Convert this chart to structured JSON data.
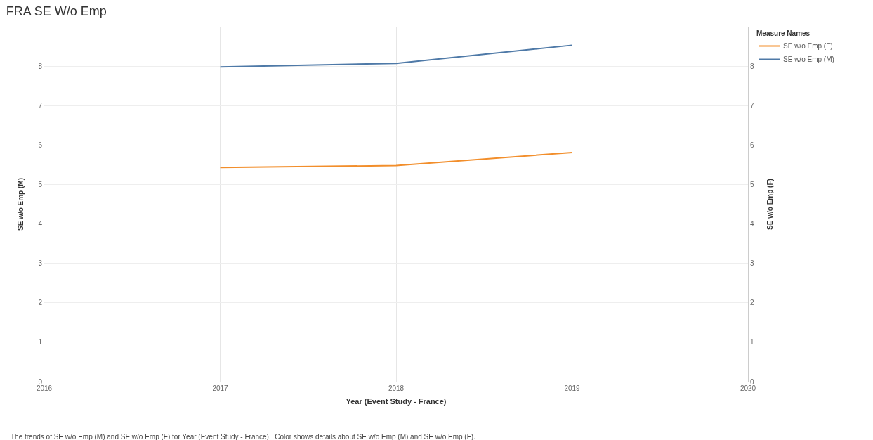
{
  "chart_data": {
    "type": "line",
    "title": "FRA SE W/o Emp",
    "xlabel": "Year (Event Study - France)",
    "ylabel": "SE w/o Emp (M)",
    "y2label": "SE w/o Emp (F)",
    "legend_title": "Measure Names",
    "x": [
      2017,
      2018,
      2019
    ],
    "series": [
      {
        "name": "SE w/o Emp (F)",
        "color": "#f28e2b",
        "values": [
          5.43,
          5.48,
          5.81
        ],
        "axis": "y2"
      },
      {
        "name": "SE w/o Emp (M)",
        "color": "#4e79a7",
        "values": [
          7.98,
          8.07,
          8.53
        ]
      }
    ],
    "xlim": [
      2016,
      2020
    ],
    "xticks": [
      2016,
      2017,
      2018,
      2019,
      2020
    ],
    "ylim": [
      0,
      9
    ],
    "yticks": [
      0,
      1,
      2,
      3,
      4,
      5,
      6,
      7,
      8
    ],
    "y2lim": [
      0,
      9
    ],
    "y2ticks": [
      0,
      1,
      2,
      3,
      4,
      5,
      6,
      7,
      8
    ],
    "grid": true,
    "legend": "top right",
    "marker": "none",
    "line_style": "solid",
    "annotations": [
      "The trends of SE w/o Emp (M) and SE w/o Emp (F) for Year (Event Study - France).  Color shows details about SE w/o Emp (M) and SE w/o Emp (F)."
    ]
  }
}
